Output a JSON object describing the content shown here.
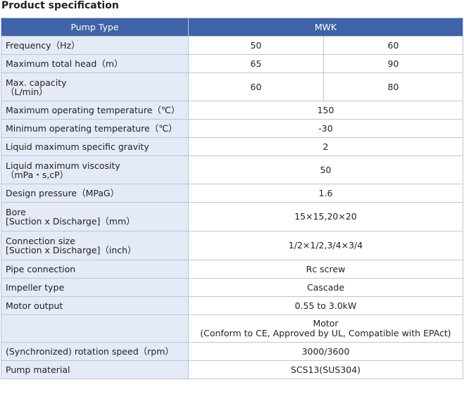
{
  "title": "Product specification",
  "header": {
    "label": "Pump Type",
    "value": "MWK"
  },
  "rows": [
    {
      "label": "Frequency（Hz）",
      "values": [
        "50",
        "60"
      ]
    },
    {
      "label": "Maximum total head（m）",
      "values": [
        "65",
        "90"
      ]
    },
    {
      "label_l1": "Max. capacity",
      "label_l2": "（L/min）",
      "values": [
        "60",
        "80"
      ]
    },
    {
      "label": "Maximum operating temperature（℃）",
      "value": "150"
    },
    {
      "label": "Minimum operating temperature（℃）",
      "value": "-30"
    },
    {
      "label": "Liquid maximum specific gravity",
      "value": "2"
    },
    {
      "label_l1": "Liquid maximum viscosity",
      "label_l2": "（mPa・s,cP）",
      "value": "50"
    },
    {
      "label": "Design pressure（MPaG）",
      "value": "1.6"
    },
    {
      "label_l1": "Bore",
      "label_l2": "[Suction x Discharge]（mm）",
      "value": "15×15,20×20"
    },
    {
      "label_l1": "Connection size",
      "label_l2": "[Suction x Discharge]（inch）",
      "value": "1/2×1/2,3/4×3/4"
    },
    {
      "label": "Pipe connection",
      "value": "Rc screw"
    },
    {
      "label": "Impeller type",
      "value": "Cascade"
    },
    {
      "label": "Motor output",
      "value": "0.55 to 3.0kW"
    },
    {
      "label": "",
      "value_l1": "Motor",
      "value_l2": "(Conform to CE, Approved by UL, Compatible with EPAct)"
    },
    {
      "label": "(Synchronized) rotation speed（rpm）",
      "value": "3000/3600"
    },
    {
      "label": "Pump material",
      "value": "SCS13(SUS304)"
    }
  ]
}
